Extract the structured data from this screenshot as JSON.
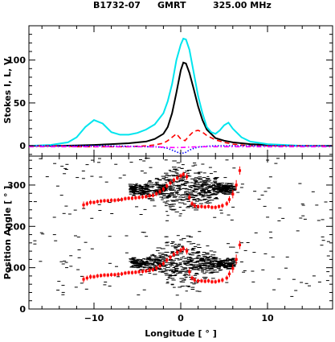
{
  "header": {
    "pulsar": "B1732-07",
    "telescope": "GMRT",
    "frequency": "325.00 MHz"
  },
  "chart_data": [
    {
      "type": "line",
      "panel": "top",
      "ylabel": "Stokes I, L, V",
      "xlim": [
        -17.5,
        17.5
      ],
      "ylim": [
        -12,
        140
      ],
      "yticks": [
        0,
        50,
        100
      ],
      "grid": false,
      "series": [
        {
          "color": "#000000",
          "style": "solid",
          "x": [
            -17.5,
            -14,
            -12,
            -10,
            -8,
            -6,
            -4,
            -3,
            -2,
            -1.5,
            -1,
            -0.5,
            0,
            0.3,
            0.6,
            1,
            1.5,
            2,
            2.5,
            3,
            4,
            5,
            6,
            8,
            10,
            12,
            14,
            17.5
          ],
          "values": [
            0,
            0,
            0.5,
            1,
            2,
            3,
            5,
            8,
            14,
            22,
            38,
            62,
            88,
            97,
            96,
            85,
            66,
            46,
            30,
            19,
            9,
            6,
            4,
            2,
            1,
            0.5,
            0,
            0
          ]
        },
        {
          "color": "#00e5ee",
          "style": "solid",
          "x": [
            -17.5,
            -15,
            -13,
            -12,
            -11,
            -10,
            -9,
            -8,
            -7,
            -6,
            -5,
            -4,
            -3,
            -2,
            -1.5,
            -1,
            -0.5,
            0,
            0.3,
            0.6,
            1,
            1.5,
            2,
            2.5,
            3,
            3.5,
            4,
            4.5,
            5,
            5.5,
            6,
            7,
            8,
            10,
            12,
            14,
            17.5
          ],
          "values": [
            0,
            1,
            4,
            10,
            22,
            30,
            26,
            16,
            13,
            13,
            15,
            19,
            25,
            38,
            52,
            72,
            100,
            118,
            125,
            124,
            112,
            85,
            58,
            38,
            22,
            16,
            14,
            18,
            24,
            27,
            20,
            10,
            5,
            2,
            1,
            0,
            0
          ]
        },
        {
          "color": "#ff0000",
          "style": "dashed",
          "x": [
            -17.5,
            -14,
            -12,
            -10,
            -8,
            -6,
            -4,
            -3,
            -2,
            -1.5,
            -1,
            -0.5,
            0,
            0.5,
            1,
            1.5,
            2,
            2.5,
            3,
            4,
            5,
            6,
            8,
            12,
            17.5
          ],
          "values": [
            0,
            0,
            -1,
            -1,
            -1,
            -1,
            0,
            1,
            3,
            6,
            10,
            14,
            8,
            6,
            12,
            17,
            18,
            16,
            12,
            7,
            4,
            2,
            0,
            0,
            0
          ]
        },
        {
          "color": "#0000ff",
          "style": "dotted",
          "x": [
            -17.5,
            -14,
            -10,
            -6,
            -4,
            -3,
            -2,
            -1.5,
            -1,
            -0.5,
            0,
            0.5,
            1,
            1.5,
            2,
            2.5,
            3,
            4,
            6,
            10,
            14,
            17.5
          ],
          "values": [
            0,
            0,
            0,
            -0.5,
            -1,
            -1,
            -2,
            -3,
            -5,
            -7,
            -9,
            -8,
            -5,
            -3,
            -1.5,
            -1,
            -0.5,
            0,
            0,
            0,
            0,
            0
          ]
        },
        {
          "color": "#ff00ff",
          "style": "dash-dot",
          "x": [
            -17.5,
            -10,
            -4,
            -2,
            -1,
            0,
            1,
            2,
            4,
            10,
            17.5
          ],
          "values": [
            -1,
            -1,
            -1,
            -1.5,
            -2,
            -2,
            -1.5,
            -1,
            -1,
            -1,
            -1
          ]
        }
      ]
    },
    {
      "type": "scatter",
      "panel": "bottom",
      "xlabel": "Longitude [ ° ]",
      "ylabel": "Position Angle [ ° ]",
      "xlim": [
        -17.5,
        17.5
      ],
      "ylim": [
        0,
        370
      ],
      "xticks": [
        -10,
        0,
        10
      ],
      "yticks": [
        0,
        100,
        200,
        300
      ],
      "grid": false,
      "series": [
        {
          "color": "#ff0000",
          "marker": "square-with-errorbar",
          "x": [
            -11.2,
            -10.8,
            -10.4,
            -10.0,
            -9.6,
            -9.2,
            -8.8,
            -8.4,
            -8.0,
            -7.6,
            -7.2,
            -6.8,
            -6.4,
            -6.0,
            -5.6,
            -5.2,
            -4.8,
            -4.4,
            -4.0,
            -3.6,
            -3.2,
            -2.8,
            -2.4,
            -2.0,
            -1.6,
            -1.2,
            -0.8,
            -0.4,
            0.0,
            0.3,
            0.7,
            1.0,
            1.3,
            1.6,
            2.0,
            2.4,
            2.8,
            3.2,
            3.6,
            4.0,
            4.4,
            4.8,
            5.3,
            5.6,
            6.0,
            6.4,
            6.8
          ],
          "values": [
            252,
            255,
            258,
            258,
            260,
            261,
            262,
            262,
            263,
            263,
            264,
            265,
            267,
            268,
            268,
            269,
            270,
            271,
            272,
            274,
            275,
            279,
            284,
            290,
            298,
            305,
            312,
            317,
            322,
            326,
            320,
            270,
            255,
            250,
            248,
            248,
            247,
            248,
            246,
            246,
            248,
            250,
            255,
            265,
            278,
            300,
            335
          ],
          "err": [
            8,
            6,
            6,
            5,
            5,
            5,
            5,
            5,
            5,
            5,
            5,
            5,
            5,
            5,
            5,
            5,
            5,
            5,
            5,
            5,
            5,
            6,
            6,
            6,
            6,
            6,
            6,
            6,
            6,
            6,
            8,
            8,
            6,
            6,
            5,
            5,
            5,
            5,
            5,
            5,
            5,
            6,
            6,
            8,
            10,
            12,
            10
          ]
        },
        {
          "color": "#ff0000",
          "marker": "square-with-errorbar",
          "x": [
            -11.2,
            -10.8,
            -10.4,
            -10.0,
            -9.6,
            -9.2,
            -8.8,
            -8.4,
            -8.0,
            -7.6,
            -7.2,
            -6.8,
            -6.4,
            -6.0,
            -5.6,
            -5.2,
            -4.8,
            -4.4,
            -4.0,
            -3.6,
            -3.2,
            -2.8,
            -2.4,
            -2.0,
            -1.6,
            -1.2,
            -0.8,
            -0.4,
            0.0,
            0.3,
            0.7,
            1.0,
            1.3,
            1.6,
            2.0,
            2.4,
            2.8,
            3.2,
            3.6,
            4.0,
            4.4,
            4.8,
            5.3,
            5.6,
            6.0,
            6.4,
            6.8
          ],
          "values": [
            72,
            75,
            78,
            78,
            80,
            81,
            82,
            82,
            83,
            83,
            84,
            85,
            87,
            88,
            88,
            89,
            90,
            91,
            92,
            94,
            95,
            99,
            104,
            110,
            118,
            125,
            132,
            137,
            142,
            146,
            140,
            90,
            75,
            70,
            68,
            68,
            67,
            68,
            66,
            66,
            68,
            70,
            75,
            85,
            98,
            120,
            155
          ],
          "err": [
            8,
            6,
            6,
            5,
            5,
            5,
            5,
            5,
            5,
            5,
            5,
            5,
            5,
            5,
            5,
            5,
            5,
            5,
            5,
            5,
            5,
            6,
            6,
            6,
            6,
            6,
            6,
            6,
            6,
            6,
            8,
            8,
            6,
            6,
            5,
            5,
            5,
            5,
            5,
            5,
            5,
            6,
            6,
            8,
            10,
            12,
            10
          ]
        }
      ]
    }
  ]
}
